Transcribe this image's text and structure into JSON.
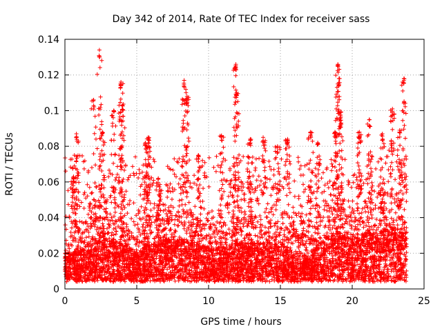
{
  "chart_data": {
    "type": "scatter",
    "title": "Day 342 of 2014, Rate Of TEC Index for receiver sass",
    "xlabel": "GPS time / hours",
    "ylabel": "ROTI / TECUs",
    "xlim": [
      0,
      25
    ],
    "ylim": [
      0,
      0.14
    ],
    "xticks": [
      0,
      5,
      10,
      15,
      20,
      25
    ],
    "xtick_labels": [
      "0",
      "5",
      "10",
      "15",
      "20",
      "25"
    ],
    "yticks": [
      0,
      0.02,
      0.04,
      0.06,
      0.08,
      0.1,
      0.12,
      0.14
    ],
    "ytick_labels": [
      "0",
      "0.02",
      "0.04",
      "0.06",
      "0.08",
      "0.1",
      "0.12",
      "0.14"
    ],
    "grid": true,
    "marker": "+",
    "marker_color": "#ff0000",
    "series": [
      {
        "name": "ROTI",
        "baseline_profile_hours": [
          0,
          1,
          2,
          3,
          4,
          5,
          6,
          7,
          8,
          9,
          10,
          11,
          12,
          13,
          14,
          15,
          16,
          17,
          18,
          19,
          20,
          21,
          22,
          23,
          23.8
        ],
        "baseline_profile_values": [
          0.015,
          0.017,
          0.02,
          0.022,
          0.02,
          0.015,
          0.02,
          0.022,
          0.022,
          0.02,
          0.018,
          0.018,
          0.02,
          0.02,
          0.02,
          0.017,
          0.016,
          0.013,
          0.022,
          0.025,
          0.022,
          0.025,
          0.027,
          0.028,
          0.025
        ],
        "peaks": [
          {
            "x": 0.6,
            "y": 0.063
          },
          {
            "x": 0.8,
            "y": 0.087
          },
          {
            "x": 2.0,
            "y": 0.106
          },
          {
            "x": 2.4,
            "y": 0.134
          },
          {
            "x": 2.6,
            "y": 0.088
          },
          {
            "x": 3.4,
            "y": 0.1
          },
          {
            "x": 3.9,
            "y": 0.116
          },
          {
            "x": 4.0,
            "y": 0.103
          },
          {
            "x": 5.6,
            "y": 0.082
          },
          {
            "x": 5.8,
            "y": 0.085
          },
          {
            "x": 6.5,
            "y": 0.062
          },
          {
            "x": 8.3,
            "y": 0.117
          },
          {
            "x": 8.5,
            "y": 0.108
          },
          {
            "x": 9.3,
            "y": 0.075
          },
          {
            "x": 10.9,
            "y": 0.086
          },
          {
            "x": 11.9,
            "y": 0.126
          },
          {
            "x": 11.95,
            "y": 0.11
          },
          {
            "x": 12.9,
            "y": 0.084
          },
          {
            "x": 13.8,
            "y": 0.085
          },
          {
            "x": 14.8,
            "y": 0.08
          },
          {
            "x": 15.5,
            "y": 0.084
          },
          {
            "x": 17.1,
            "y": 0.088
          },
          {
            "x": 17.6,
            "y": 0.082
          },
          {
            "x": 18.8,
            "y": 0.088
          },
          {
            "x": 19.0,
            "y": 0.126
          },
          {
            "x": 19.1,
            "y": 0.118
          },
          {
            "x": 19.2,
            "y": 0.099
          },
          {
            "x": 20.5,
            "y": 0.088
          },
          {
            "x": 21.2,
            "y": 0.095
          },
          {
            "x": 22.1,
            "y": 0.087
          },
          {
            "x": 22.8,
            "y": 0.101
          },
          {
            "x": 23.3,
            "y": 0.089
          },
          {
            "x": 23.6,
            "y": 0.118
          }
        ],
        "x_range": [
          0,
          23.8
        ],
        "note": "points dense between ~0.005 and ~0.04 throughout the day"
      }
    ]
  }
}
